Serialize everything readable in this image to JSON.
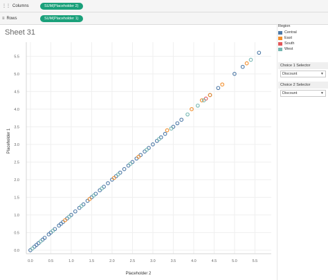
{
  "shelves": {
    "columns": {
      "label": "Columns",
      "pill": "SUM(Placeholder 2)"
    },
    "rows": {
      "label": "Rows",
      "pill": "SUM(Placeholder 1)"
    }
  },
  "sheet": {
    "title": "Sheet 31"
  },
  "legend": {
    "title": "Region",
    "items": [
      {
        "label": "Central",
        "color": "#4e79a7"
      },
      {
        "label": "East",
        "color": "#f28e2b"
      },
      {
        "label": "South",
        "color": "#e15759"
      },
      {
        "label": "West",
        "color": "#76b7b2"
      }
    ]
  },
  "selectors": [
    {
      "title": "Choice 1 Selector",
      "value": "Discount"
    },
    {
      "title": "Choice 2 Selector",
      "value": "Discount"
    }
  ],
  "chart_data": {
    "type": "scatter",
    "xlabel": "Placeholder 2",
    "ylabel": "Placeholder 1",
    "xlim": [
      -0.1,
      5.9
    ],
    "ylim": [
      -0.1,
      5.9
    ],
    "xticks": [
      "0.0",
      "0.5",
      "1.0",
      "1.5",
      "2.0",
      "2.5",
      "3.0",
      "3.5",
      "4.0",
      "4.5",
      "5.0",
      "5.5"
    ],
    "yticks": [
      "0.0",
      "0.5",
      "1.0",
      "1.5",
      "2.0",
      "2.5",
      "3.0",
      "3.5",
      "4.0",
      "4.5",
      "5.0",
      "5.5"
    ],
    "grid": true,
    "series": [
      {
        "name": "Central",
        "color": "#4e79a7",
        "points": [
          [
            0.0,
            0.0
          ],
          [
            0.1,
            0.1
          ],
          [
            0.15,
            0.15
          ],
          [
            0.2,
            0.2
          ],
          [
            0.3,
            0.3
          ],
          [
            0.35,
            0.35
          ],
          [
            0.45,
            0.45
          ],
          [
            0.5,
            0.5
          ],
          [
            0.6,
            0.6
          ],
          [
            0.7,
            0.7
          ],
          [
            0.75,
            0.75
          ],
          [
            0.8,
            0.8
          ],
          [
            0.9,
            0.9
          ],
          [
            1.0,
            1.0
          ],
          [
            1.1,
            1.1
          ],
          [
            1.2,
            1.2
          ],
          [
            1.3,
            1.3
          ],
          [
            1.4,
            1.4
          ],
          [
            1.5,
            1.5
          ],
          [
            1.6,
            1.6
          ],
          [
            1.7,
            1.7
          ],
          [
            1.8,
            1.8
          ],
          [
            1.9,
            1.9
          ],
          [
            2.0,
            2.0
          ],
          [
            2.1,
            2.1
          ],
          [
            2.2,
            2.2
          ],
          [
            2.3,
            2.3
          ],
          [
            2.4,
            2.4
          ],
          [
            2.5,
            2.5
          ],
          [
            2.6,
            2.6
          ],
          [
            2.7,
            2.7
          ],
          [
            2.8,
            2.8
          ],
          [
            2.9,
            2.9
          ],
          [
            3.0,
            3.0
          ],
          [
            3.1,
            3.1
          ],
          [
            3.2,
            3.2
          ],
          [
            3.3,
            3.3
          ],
          [
            3.5,
            3.5
          ],
          [
            3.6,
            3.6
          ],
          [
            3.7,
            3.7
          ],
          [
            4.4,
            4.4
          ],
          [
            4.6,
            4.6
          ],
          [
            5.0,
            5.0
          ],
          [
            5.2,
            5.2
          ],
          [
            5.6,
            5.6
          ]
        ]
      },
      {
        "name": "East",
        "color": "#f28e2b",
        "points": [
          [
            0.85,
            0.85
          ],
          [
            1.45,
            1.45
          ],
          [
            2.05,
            2.05
          ],
          [
            2.65,
            2.65
          ],
          [
            3.35,
            3.4
          ],
          [
            3.95,
            4.0
          ],
          [
            4.2,
            4.25
          ],
          [
            4.4,
            4.4
          ],
          [
            4.7,
            4.7
          ],
          [
            5.3,
            5.3
          ]
        ]
      },
      {
        "name": "South",
        "color": "#e15759",
        "points": [
          [
            4.3,
            4.3
          ]
        ]
      },
      {
        "name": "West",
        "color": "#76b7b2",
        "points": [
          [
            0.05,
            0.05
          ],
          [
            0.25,
            0.25
          ],
          [
            0.55,
            0.55
          ],
          [
            0.95,
            0.95
          ],
          [
            1.25,
            1.25
          ],
          [
            1.55,
            1.55
          ],
          [
            1.75,
            1.75
          ],
          [
            2.15,
            2.15
          ],
          [
            2.45,
            2.45
          ],
          [
            2.85,
            2.85
          ],
          [
            3.15,
            3.15
          ],
          [
            3.45,
            3.45
          ],
          [
            3.85,
            3.85
          ],
          [
            4.1,
            4.1
          ],
          [
            4.25,
            4.25
          ],
          [
            5.4,
            5.4
          ]
        ]
      }
    ]
  }
}
